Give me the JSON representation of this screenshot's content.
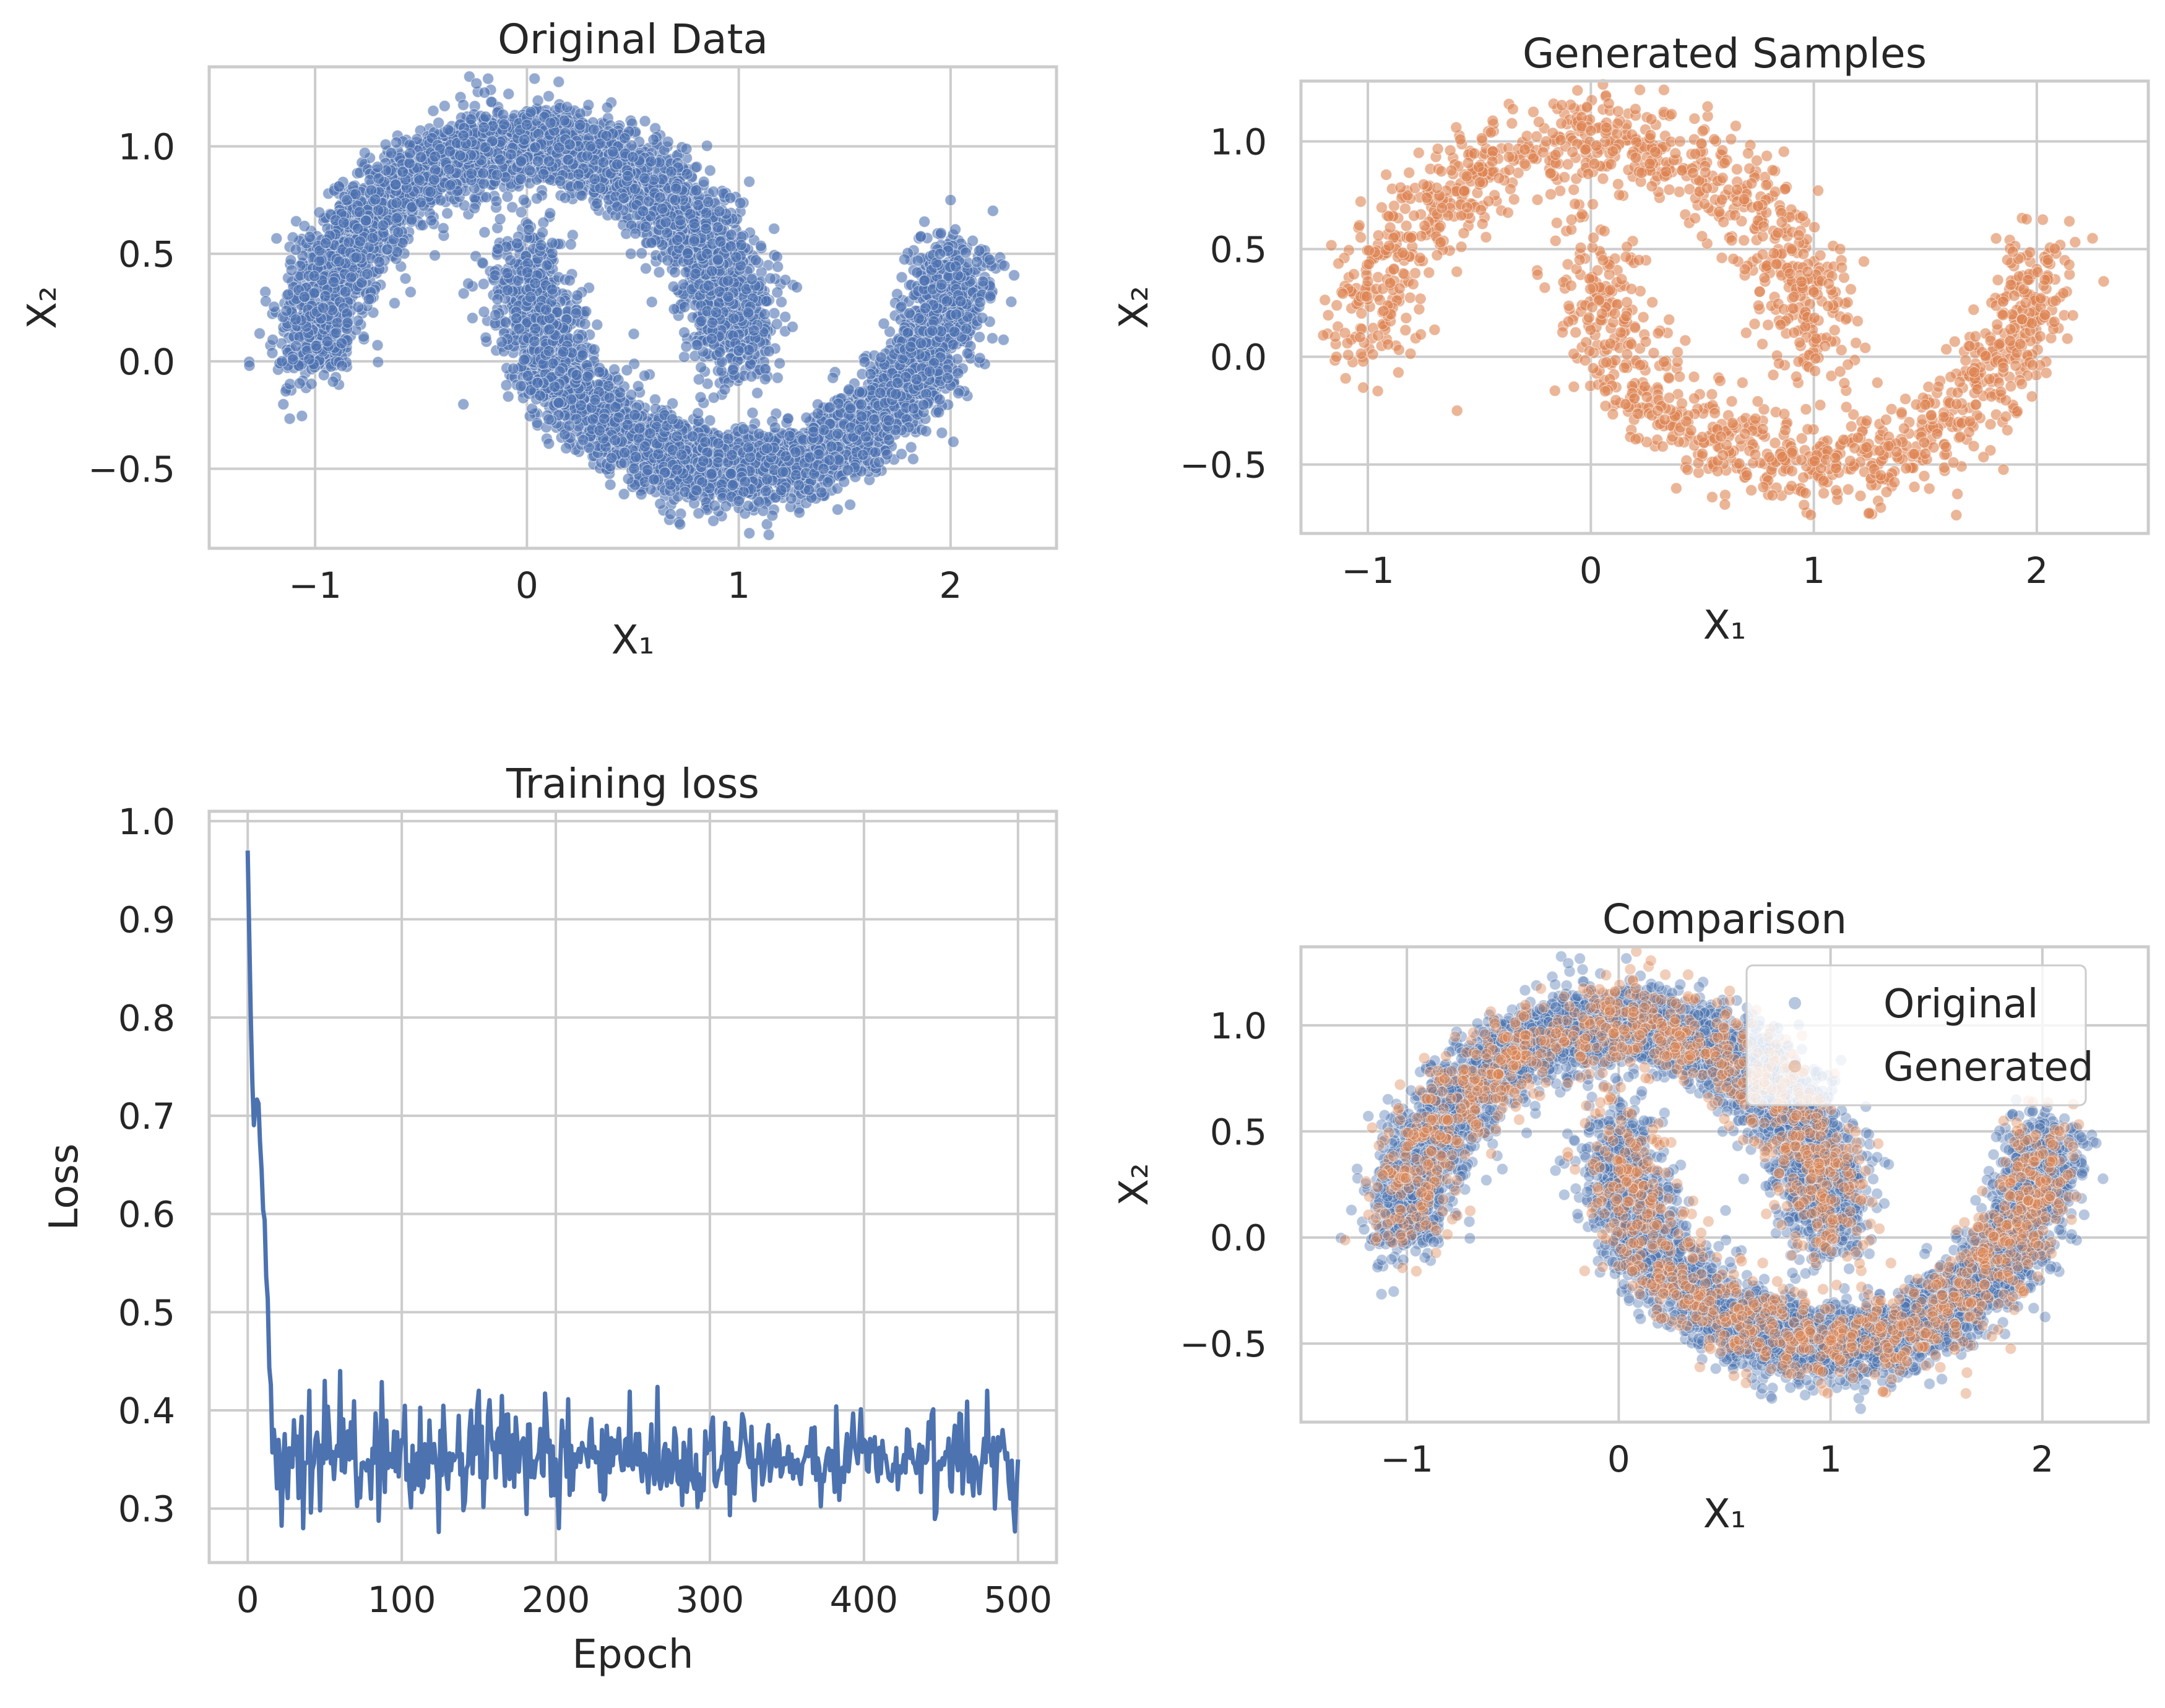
{
  "colors": {
    "blue": "#4c72b0",
    "orange": "#dd8452",
    "grid": "#cccccc",
    "frame": "#cccccc",
    "text": "#262626"
  },
  "chart_data": [
    {
      "type": "scatter",
      "title": "Original Data",
      "xlabel": "X₁",
      "ylabel": "X₂",
      "xlim": [
        -1.5,
        2.5
      ],
      "ylim": [
        -0.87,
        1.37
      ],
      "xticks": [
        -1,
        0,
        1,
        2
      ],
      "yticks": [
        -0.5,
        0.0,
        0.5,
        1.0
      ],
      "xtick_labels": [
        "−1",
        "0",
        "1",
        "2"
      ],
      "ytick_labels": [
        "−0.5",
        "0.0",
        "0.5",
        "1.0"
      ],
      "grid": true,
      "series": [
        {
          "color": "#4c72b0",
          "alpha": 0.6,
          "approx_count": 10000,
          "points": [
            [
              -1.31,
              -0.02
            ],
            [
              -1.2,
              0.1
            ],
            [
              -1.15,
              -0.2
            ],
            [
              -1.05,
              0.3
            ],
            [
              -0.95,
              0.55
            ],
            [
              -0.85,
              0.75
            ],
            [
              -0.7,
              0.85
            ],
            [
              -0.5,
              0.95
            ],
            [
              -0.3,
              1.05
            ],
            [
              -0.2,
              1.25
            ],
            [
              0.0,
              1.1
            ],
            [
              0.15,
              1.3
            ],
            [
              0.3,
              1.0
            ],
            [
              0.5,
              0.95
            ],
            [
              0.7,
              0.75
            ],
            [
              0.85,
              0.5
            ],
            [
              0.95,
              0.3
            ],
            [
              1.0,
              0.05
            ],
            [
              -0.2,
              0.6
            ],
            [
              -0.15,
              0.4
            ],
            [
              -0.05,
              0.2
            ],
            [
              0.05,
              -0.1
            ],
            [
              0.2,
              -0.3
            ],
            [
              0.4,
              -0.45
            ],
            [
              0.6,
              -0.55
            ],
            [
              0.8,
              -0.6
            ],
            [
              1.0,
              -0.65
            ],
            [
              1.2,
              -0.6
            ],
            [
              1.4,
              -0.5
            ],
            [
              1.6,
              -0.35
            ],
            [
              1.75,
              -0.1
            ],
            [
              1.85,
              0.2
            ],
            [
              1.95,
              0.5
            ],
            [
              2.0,
              0.75
            ],
            [
              2.2,
              0.7
            ],
            [
              2.3,
              0.4
            ],
            [
              2.25,
              0.1
            ],
            [
              -0.3,
              -0.2
            ],
            [
              1.05,
              -0.8
            ]
          ]
        }
      ]
    },
    {
      "type": "scatter",
      "title": "Generated Samples",
      "xlabel": "X₁",
      "ylabel": "X₂",
      "xlim": [
        -1.3,
        2.5
      ],
      "ylim": [
        -0.82,
        1.28
      ],
      "xticks": [
        -1,
        0,
        1,
        2
      ],
      "yticks": [
        -0.5,
        0.0,
        0.5,
        1.0
      ],
      "xtick_labels": [
        "−1",
        "0",
        "1",
        "2"
      ],
      "ytick_labels": [
        "−0.5",
        "0.0",
        "0.5",
        "1.0"
      ],
      "grid": true,
      "series": [
        {
          "color": "#dd8452",
          "alpha": 0.6,
          "approx_count": 2000,
          "points": [
            [
              -1.2,
              0.1
            ],
            [
              -1.1,
              -0.1
            ],
            [
              -1.0,
              0.35
            ],
            [
              -0.9,
              0.6
            ],
            [
              -0.75,
              0.8
            ],
            [
              -0.55,
              0.9
            ],
            [
              -0.35,
              1.15
            ],
            [
              -0.2,
              1.0
            ],
            [
              0.0,
              1.05
            ],
            [
              0.2,
              1.15
            ],
            [
              0.4,
              1.0
            ],
            [
              0.6,
              0.9
            ],
            [
              0.75,
              0.7
            ],
            [
              0.9,
              0.5
            ],
            [
              1.0,
              0.3
            ],
            [
              1.05,
              0.05
            ],
            [
              -0.6,
              -0.25
            ],
            [
              -0.05,
              0.45
            ],
            [
              0.05,
              0.2
            ],
            [
              0.15,
              -0.05
            ],
            [
              0.3,
              -0.25
            ],
            [
              0.5,
              -0.45
            ],
            [
              0.7,
              -0.55
            ],
            [
              0.9,
              -0.6
            ],
            [
              1.1,
              -0.62
            ],
            [
              1.3,
              -0.55
            ],
            [
              1.5,
              -0.45
            ],
            [
              1.7,
              -0.3
            ],
            [
              1.85,
              -0.05
            ],
            [
              1.95,
              0.25
            ],
            [
              2.05,
              0.45
            ],
            [
              2.25,
              0.55
            ],
            [
              2.3,
              0.35
            ],
            [
              1.3,
              -0.7
            ]
          ]
        }
      ]
    },
    {
      "type": "line",
      "title": "Training loss",
      "xlabel": "Epoch",
      "ylabel": "Loss",
      "xlim": [
        -25,
        525
      ],
      "ylim": [
        0.245,
        1.01
      ],
      "xticks": [
        0,
        100,
        200,
        300,
        400,
        500
      ],
      "yticks": [
        0.3,
        0.4,
        0.5,
        0.6,
        0.7,
        0.8,
        0.9,
        1.0
      ],
      "xtick_labels": [
        "0",
        "100",
        "200",
        "300",
        "400",
        "500"
      ],
      "ytick_labels": [
        "0.3",
        "0.4",
        "0.5",
        "0.6",
        "0.7",
        "0.8",
        "0.9",
        "1.0"
      ],
      "grid": true,
      "series": [
        {
          "color": "#4c72b0",
          "x": [
            0,
            2,
            4,
            6,
            8,
            10,
            12,
            14,
            16,
            20,
            30,
            36,
            40,
            46,
            50,
            56,
            60,
            66,
            80,
            100,
            130,
            150,
            170,
            200,
            202,
            230,
            250,
            300,
            350,
            400,
            450,
            480,
            485,
            490,
            495,
            500
          ],
          "y": [
            0.97,
            0.8,
            0.69,
            0.71,
            0.67,
            0.6,
            0.56,
            0.47,
            0.35,
            0.37,
            0.39,
            0.28,
            0.42,
            0.36,
            0.43,
            0.33,
            0.44,
            0.35,
            0.31,
            0.37,
            0.32,
            0.42,
            0.33,
            0.35,
            0.28,
            0.38,
            0.34,
            0.36,
            0.35,
            0.37,
            0.34,
            0.42,
            0.3,
            0.38,
            0.31,
            0.35
          ]
        }
      ]
    },
    {
      "type": "scatter",
      "title": "Comparison",
      "xlabel": "X₁",
      "ylabel": "X₂",
      "xlim": [
        -1.5,
        2.5
      ],
      "ylim": [
        -0.87,
        1.37
      ],
      "xticks": [
        -1,
        0,
        1,
        2
      ],
      "yticks": [
        -0.5,
        0.0,
        0.5,
        1.0
      ],
      "xtick_labels": [
        "−1",
        "0",
        "1",
        "2"
      ],
      "ytick_labels": [
        "−0.5",
        "0.0",
        "0.5",
        "1.0"
      ],
      "grid": true,
      "legend": "top-right",
      "series": [
        {
          "name": "Original",
          "color": "#4c72b0",
          "alpha": 0.4,
          "approx_count": 10000
        },
        {
          "name": "Generated",
          "color": "#dd8452",
          "alpha": 0.4,
          "approx_count": 2000
        }
      ]
    }
  ]
}
